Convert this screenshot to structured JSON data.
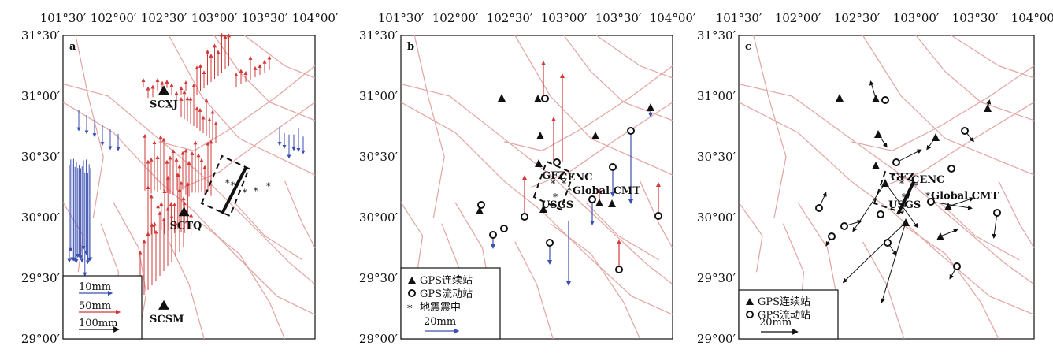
{
  "axes": {
    "x_ticks": [
      "101°30′",
      "102°00′",
      "102°30′",
      "103°00′",
      "103°30′",
      "104°00′"
    ],
    "y_ticks": [
      "31°30′",
      "31°00′",
      "30°30′",
      "30°00′",
      "29°30′",
      "29°00′"
    ]
  },
  "panels": [
    {
      "letter": "a",
      "stations": [
        {
          "name": "SCXJ",
          "lon": 102.5,
          "lat": 31.05
        },
        {
          "name": "SCTQ",
          "lon": 102.7,
          "lat": 30.05
        },
        {
          "name": "SCSM",
          "lon": 102.5,
          "lat": 29.28
        }
      ],
      "legend": [
        {
          "text": "10mm",
          "color": "#3a4fb0"
        },
        {
          "text": "50mm",
          "color": "#d23a3a"
        },
        {
          "text": "100mm",
          "color": "#111111"
        }
      ]
    },
    {
      "letter": "b",
      "sources": [
        {
          "name": "GFZ",
          "lon": 102.9,
          "lat": 30.28
        },
        {
          "name": "CENC",
          "lon": 103.0,
          "lat": 30.28
        },
        {
          "name": "USGS",
          "lon": 102.92,
          "lat": 30.17
        },
        {
          "name": "Global CMT",
          "lon": 103.05,
          "lat": 30.22
        }
      ],
      "legend": [
        {
          "text": "GPS连续站",
          "symbol": "triangle"
        },
        {
          "text": "GPS流动站",
          "symbol": "circle"
        },
        {
          "text": "地震震中",
          "symbol": "star"
        },
        {
          "text": "20mm",
          "symbol": "arrow",
          "color": "#3a4fb0"
        }
      ]
    },
    {
      "letter": "c",
      "sources": [
        {
          "name": "GFZ",
          "lon": 102.88,
          "lat": 30.28
        },
        {
          "name": "CENC",
          "lon": 103.0,
          "lat": 30.26
        },
        {
          "name": "USGS",
          "lon": 102.9,
          "lat": 30.17
        },
        {
          "name": "Global CMT",
          "lon": 103.1,
          "lat": 30.18
        }
      ],
      "legend": [
        {
          "text": "GPS连续站",
          "symbol": "triangle"
        },
        {
          "text": "GPS流动站",
          "symbol": "circle"
        },
        {
          "text": "20mm",
          "symbol": "arrow",
          "color": "#111111"
        }
      ]
    }
  ],
  "colors": {
    "fault": "#e2a4a2",
    "vertical_up": "#d23a3a",
    "vertical_down": "#3a4fb0",
    "horizontal": "#111111"
  }
}
